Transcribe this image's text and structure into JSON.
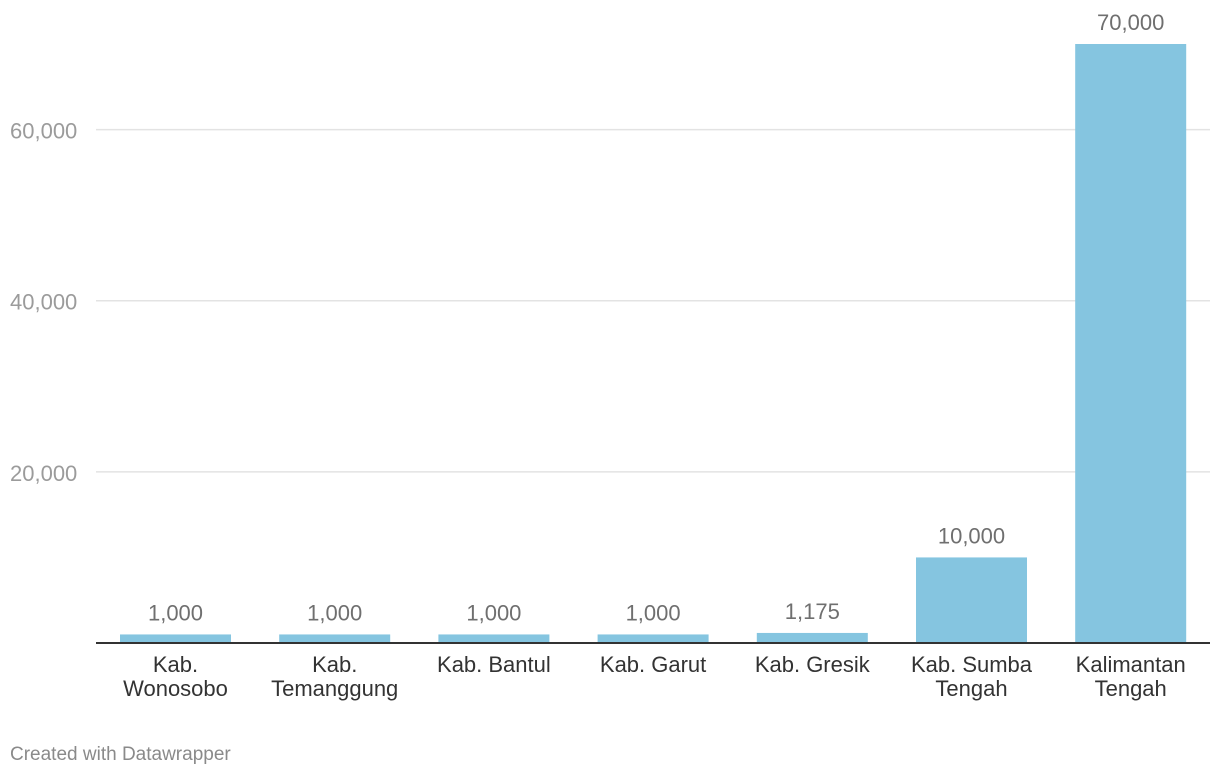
{
  "chart_data": {
    "type": "bar",
    "categories": [
      [
        "Kab.",
        "Wonosobo"
      ],
      [
        "Kab.",
        "Temanggung"
      ],
      [
        "Kab. Bantul"
      ],
      [
        "Kab. Garut"
      ],
      [
        "Kab. Gresik"
      ],
      [
        "Kab. Sumba",
        "Tengah"
      ],
      [
        "Kalimantan",
        "Tengah"
      ]
    ],
    "values": [
      1000,
      1000,
      1000,
      1000,
      1175,
      10000,
      70000
    ],
    "value_labels": [
      "1,000",
      "1,000",
      "1,000",
      "1,000",
      "1,175",
      "10,000",
      "70,000"
    ],
    "y_ticks": [
      20000,
      40000,
      60000
    ],
    "y_tick_labels": [
      "20,000",
      "40,000",
      "60,000"
    ],
    "ylim": [
      0,
      75000
    ],
    "grid": true,
    "bar_color": "#85c5e0"
  },
  "credit": "Created with Datawrapper"
}
